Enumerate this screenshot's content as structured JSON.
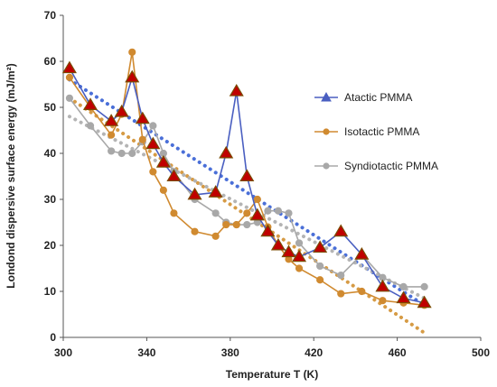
{
  "chart_data": {
    "type": "line",
    "xlabel": "Temperature T (K)",
    "ylabel": "Londond dispersive surface energy (mJ/m²)",
    "xlim": [
      300,
      500
    ],
    "ylim": [
      0,
      70
    ],
    "xticks": [
      300,
      340,
      380,
      420,
      460,
      500
    ],
    "yticks": [
      0,
      10,
      20,
      30,
      40,
      50,
      60,
      70
    ],
    "grid": false,
    "legend_position": "right",
    "series": [
      {
        "name": "Atactic PMMA",
        "color": "#4a5fc1",
        "marker": "triangle",
        "marker_fill": "#c00000",
        "marker_edge": "#7a4a00",
        "x": [
          303,
          313,
          323,
          328,
          333,
          338,
          343,
          348,
          353,
          363,
          373,
          378,
          383,
          388,
          393,
          398,
          403,
          408,
          413,
          423,
          433,
          443,
          453,
          463,
          473
        ],
        "y": [
          58.5,
          50.5,
          47.0,
          49.0,
          56.5,
          47.5,
          42.0,
          38.0,
          35.0,
          31.0,
          31.5,
          40.0,
          53.5,
          35.0,
          26.5,
          23.0,
          20.0,
          18.5,
          17.5,
          19.5,
          23.0,
          18.0,
          11.0,
          8.5,
          7.5
        ],
        "trend": {
          "x": [
            303,
            473
          ],
          "y": [
            56.0,
            7.0
          ],
          "color": "#4a6fd8"
        }
      },
      {
        "name": "Isotactic PMMA",
        "color": "#d08a30",
        "marker": "circle",
        "x": [
          303,
          313,
          323,
          328,
          333,
          338,
          343,
          348,
          353,
          363,
          373,
          378,
          383,
          388,
          393,
          398,
          403,
          408,
          413,
          423,
          433,
          443,
          453,
          463,
          473
        ],
        "y": [
          56.5,
          50.0,
          44.0,
          48.5,
          62.0,
          43.0,
          36.0,
          32.0,
          27.0,
          23.0,
          22.0,
          24.5,
          24.5,
          27.0,
          30.0,
          24.0,
          20.0,
          17.0,
          15.0,
          12.5,
          9.5,
          10.0,
          8.0,
          7.5,
          7.0
        ],
        "trend": {
          "x": [
            303,
            473
          ],
          "y": [
            52.0,
            1.0
          ],
          "color": "#d69b45"
        }
      },
      {
        "name": "Syndiotactic PMMA",
        "color": "#a8a8a8",
        "marker": "circle",
        "x": [
          303,
          313,
          323,
          328,
          333,
          338,
          343,
          348,
          353,
          363,
          373,
          378,
          383,
          388,
          393,
          398,
          403,
          408,
          413,
          423,
          433,
          443,
          453,
          463,
          473
        ],
        "y": [
          52.0,
          46.0,
          40.5,
          40.0,
          40.0,
          42.5,
          46.0,
          40.0,
          36.0,
          30.0,
          27.0,
          25.0,
          24.5,
          24.5,
          25.0,
          27.5,
          27.5,
          27.0,
          20.5,
          15.5,
          13.5,
          18.0,
          13.0,
          11.0,
          11.0
        ],
        "trend": {
          "x": [
            303,
            473
          ],
          "y": [
            48.0,
            8.5
          ],
          "color": "#b4b4b4"
        }
      }
    ]
  }
}
